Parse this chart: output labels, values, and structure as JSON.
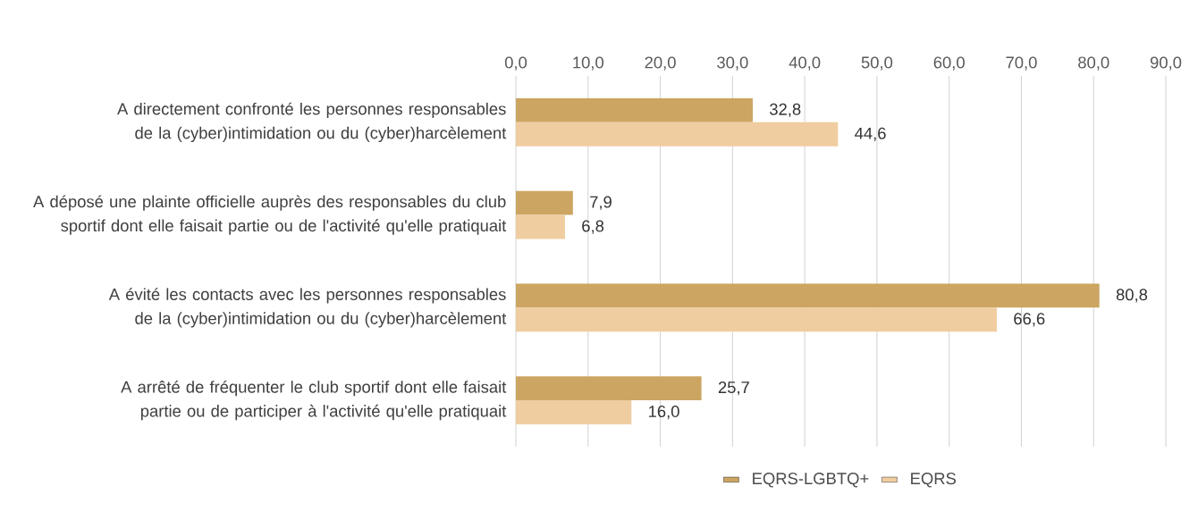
{
  "chart_data": {
    "type": "bar",
    "orientation": "horizontal",
    "categories": [
      "A directement confronté les personnes responsables de la (cyber)intimidation ou du (cyber)harcèlement",
      "A déposé une plainte officielle auprès des responsables du club sportif dont elle faisait partie ou de l'activité qu'elle pratiquait",
      "A évité les contacts avec les personnes responsables de la (cyber)intimidation ou du (cyber)harcèlement",
      "A arrêté de fréquenter le club sportif dont elle faisait partie ou de participer à l'activité qu'elle pratiquait"
    ],
    "series": [
      {
        "name": "EQRS-LGBTQ+",
        "color": "#cca562",
        "values": [
          32.8,
          7.9,
          80.8,
          25.7
        ],
        "value_labels": [
          "32,8",
          "7,9",
          "80,8",
          "25,7"
        ]
      },
      {
        "name": "EQRS",
        "color": "#f0cda0",
        "values": [
          44.6,
          6.8,
          66.6,
          16.0
        ],
        "value_labels": [
          "44,6",
          "6,8",
          "66,6",
          "16,0"
        ]
      }
    ],
    "xlim": [
      0,
      90
    ],
    "xticks": [
      {
        "value": 0,
        "label": "0,0"
      },
      {
        "value": 10,
        "label": "10,0"
      },
      {
        "value": 20,
        "label": "20,0"
      },
      {
        "value": 30,
        "label": "30,0"
      },
      {
        "value": 40,
        "label": "40,0"
      },
      {
        "value": 50,
        "label": "50,0"
      },
      {
        "value": 60,
        "label": "60,0"
      },
      {
        "value": 70,
        "label": "70,0"
      },
      {
        "value": 80,
        "label": "80,0"
      },
      {
        "value": 90,
        "label": "90,0"
      }
    ],
    "grid": "x",
    "legend": "bottom"
  }
}
